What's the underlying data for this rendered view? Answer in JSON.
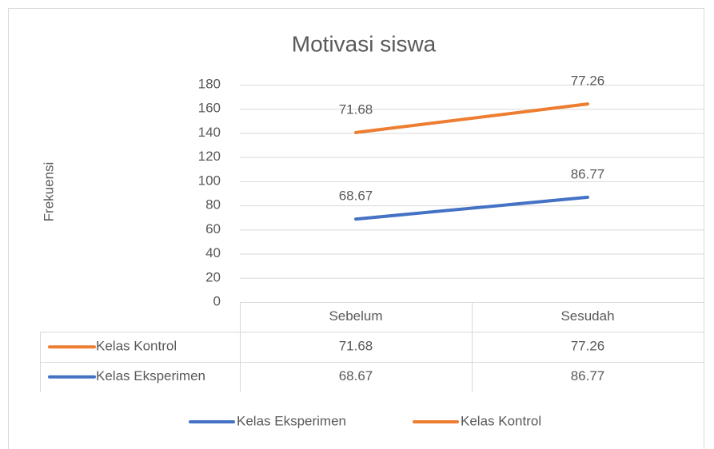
{
  "chart_data": {
    "type": "line",
    "stacked": true,
    "title": "Motivasi siswa",
    "y_label": "Frekuensi",
    "categories": [
      "Sebelum",
      "Sesudah"
    ],
    "series": [
      {
        "name": "Kelas Eksperimen",
        "color": "#4472c4",
        "values": [
          68.67,
          86.77
        ]
      },
      {
        "name": "Kelas Kontrol",
        "color": "#ed7d31",
        "values": [
          71.68,
          77.26
        ]
      }
    ],
    "ylim": [
      0,
      180
    ],
    "yticks": [
      0,
      20,
      40,
      60,
      80,
      100,
      120,
      140,
      160,
      180
    ],
    "grid": true,
    "data_table": true,
    "legend": "bottom"
  }
}
